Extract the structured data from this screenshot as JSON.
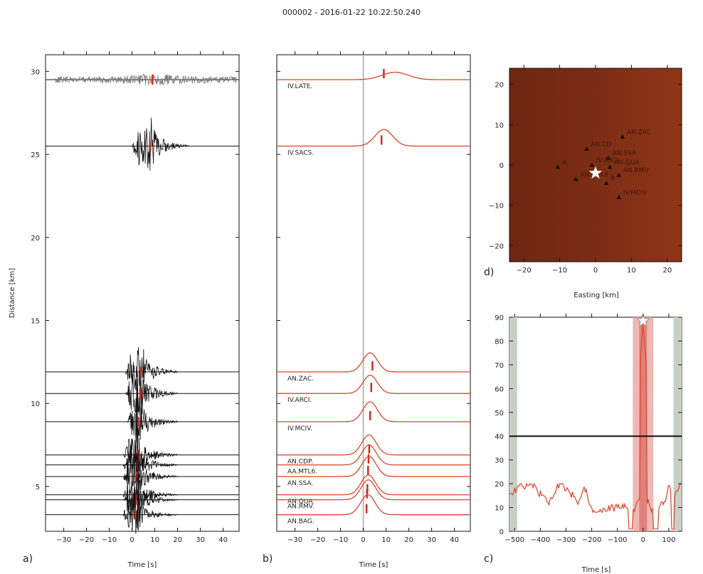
{
  "title": "000002 - 2016-01-22 10:22:50.240",
  "colors": {
    "trace": "#111111",
    "noise_trace": "#7a7a7a",
    "pick": "#d22b1f",
    "envelope": "#d9452a",
    "vline": "#b9b9b9",
    "map_bg": "#7a2a14",
    "shade_grey": "#c9cfc4",
    "shade_red": "#e8a09b",
    "hline": "#111111"
  },
  "chart_data": [
    {
      "id": "a",
      "type": "line",
      "panel_label": "a)",
      "xlabel": "Time [s]",
      "ylabel": "Distance [km]",
      "xlim": [
        -38,
        47
      ],
      "ylim": [
        2.3,
        31.0
      ],
      "xticks": [
        -30,
        -20,
        -10,
        0,
        10,
        20,
        30,
        40
      ],
      "yticks": [
        5,
        10,
        15,
        20,
        25,
        30
      ],
      "traces": [
        {
          "distance": 29.5,
          "pick": 9,
          "onset": -34,
          "end": 46,
          "noisy": true,
          "amp": 0.35
        },
        {
          "distance": 25.5,
          "pick": 8,
          "onset": 0,
          "end": 25,
          "noisy": false,
          "amp": 1.2
        },
        {
          "distance": 11.9,
          "pick": 4,
          "onset": -3,
          "end": 20,
          "noisy": false,
          "amp": 1.2
        },
        {
          "distance": 10.6,
          "pick": 3.5,
          "onset": -3,
          "end": 20,
          "noisy": false,
          "amp": 1.2
        },
        {
          "distance": 8.9,
          "pick": 3,
          "onset": -2,
          "end": 20,
          "noisy": false,
          "amp": 1.2
        },
        {
          "distance": 6.9,
          "pick": 2.6,
          "onset": -4,
          "end": 20,
          "noisy": false,
          "amp": 1.0
        },
        {
          "distance": 6.3,
          "pick": 2.3,
          "onset": -4,
          "end": 20,
          "noisy": false,
          "amp": 1.0
        },
        {
          "distance": 5.6,
          "pick": 2.1,
          "onset": -4,
          "end": 20,
          "noisy": false,
          "amp": 1.0
        },
        {
          "distance": 4.5,
          "pick": 1.8,
          "onset": -4,
          "end": 20,
          "noisy": false,
          "amp": 1.0
        },
        {
          "distance": 4.2,
          "pick": 1.6,
          "onset": -4,
          "end": 20,
          "noisy": false,
          "amp": 1.0
        },
        {
          "distance": 3.3,
          "pick": 1.4,
          "onset": -4,
          "end": 20,
          "noisy": false,
          "amp": 1.0
        }
      ]
    },
    {
      "id": "b",
      "type": "line",
      "panel_label": "b)",
      "xlabel": "Time [s]",
      "xlim": [
        -38,
        47
      ],
      "ylim": [
        2.3,
        31.0
      ],
      "xticks": [
        -30,
        -20,
        -10,
        0,
        10,
        20,
        30,
        40
      ],
      "vline_x": 0,
      "traces": [
        {
          "station": "IV.LATE.",
          "distance": 29.5,
          "peak": 14,
          "width": 8,
          "height": 0.45,
          "pick": 9
        },
        {
          "station": "IV.SACS.",
          "distance": 25.5,
          "peak": 9,
          "width": 5.5,
          "height": 1.0,
          "pick": 8
        },
        {
          "station": "AN.ZAC.",
          "distance": 11.9,
          "peak": 3,
          "width": 4.5,
          "height": 1.15,
          "pick": 4
        },
        {
          "station": "IV.ARCI.",
          "distance": 10.6,
          "peak": 3,
          "width": 4.5,
          "height": 1.1,
          "pick": 3.5
        },
        {
          "station": "IV.MCIV.",
          "distance": 8.9,
          "peak": 3,
          "width": 4.5,
          "height": 1.2,
          "pick": 3
        },
        {
          "station": "AN.CDP.",
          "distance": 6.9,
          "peak": 2.5,
          "width": 4.5,
          "height": 1.2,
          "pick": 2.6
        },
        {
          "station": "AA.MTL6.",
          "distance": 6.3,
          "peak": 2.5,
          "width": 4.5,
          "height": 1.2,
          "pick": 2.3
        },
        {
          "station": "AN.SSA.",
          "distance": 5.6,
          "peak": 2.5,
          "width": 4.5,
          "height": 1.2,
          "pick": 2.1
        },
        {
          "station": "AN.QUA.",
          "distance": 4.5,
          "peak": 2.2,
          "width": 4.5,
          "height": 1.2,
          "pick": 1.8
        },
        {
          "station": "AN.RMV.",
          "distance": 4.2,
          "peak": 2.2,
          "width": 4.5,
          "height": 1.2,
          "pick": 1.6
        },
        {
          "station": "AN.BAG.",
          "distance": 3.3,
          "peak": 2.0,
          "width": 4.5,
          "height": 1.2,
          "pick": 1.4
        }
      ]
    },
    {
      "id": "d",
      "type": "scatter",
      "panel_label": "d)",
      "xlabel": "Easting [km]",
      "xlim": [
        -24,
        24
      ],
      "ylim": [
        -24,
        24
      ],
      "xticks": [
        -20,
        -10,
        0,
        10,
        20
      ],
      "yticks": [
        -20,
        -10,
        0,
        10,
        20
      ],
      "epicenter": [
        0,
        -2
      ],
      "stations": [
        {
          "name": "AN.ZAC",
          "x": 7.5,
          "y": 7
        },
        {
          "name": "AN.CD",
          "x": -2.5,
          "y": 4
        },
        {
          "name": "AN.SSA",
          "x": 3.5,
          "y": 1.8
        },
        {
          "name": "IV.ARCI",
          "x": -1,
          "y": 0
        },
        {
          "name": "AN.QUA",
          "x": 4,
          "y": -0.5
        },
        {
          "name": "A",
          "x": -10.5,
          "y": -0.5
        },
        {
          "name": "AN.MTL6",
          "x": -5.5,
          "y": -3.5
        },
        {
          "name": "AN.RMV",
          "x": 6.5,
          "y": -2.5
        },
        {
          "name": "B",
          "x": 3,
          "y": -4.5
        },
        {
          "name": "IV.MCIV",
          "x": 6.5,
          "y": -8
        }
      ]
    },
    {
      "id": "c",
      "type": "line",
      "panel_label": "c)",
      "xlabel": "Time [s]",
      "xlim": [
        -520,
        150
      ],
      "ylim": [
        0,
        90
      ],
      "xticks": [
        -500,
        -400,
        -300,
        -200,
        -100,
        0,
        100
      ],
      "yticks": [
        0,
        10,
        20,
        30,
        40,
        50,
        60,
        70,
        80,
        90
      ],
      "threshold": 40,
      "grey_bands": [
        [
          -520,
          -490
        ],
        [
          118,
          150
        ]
      ],
      "red_band": [
        -40,
        40
      ],
      "red_band_inner": [
        -15,
        15
      ],
      "peak_time": 0
    }
  ]
}
